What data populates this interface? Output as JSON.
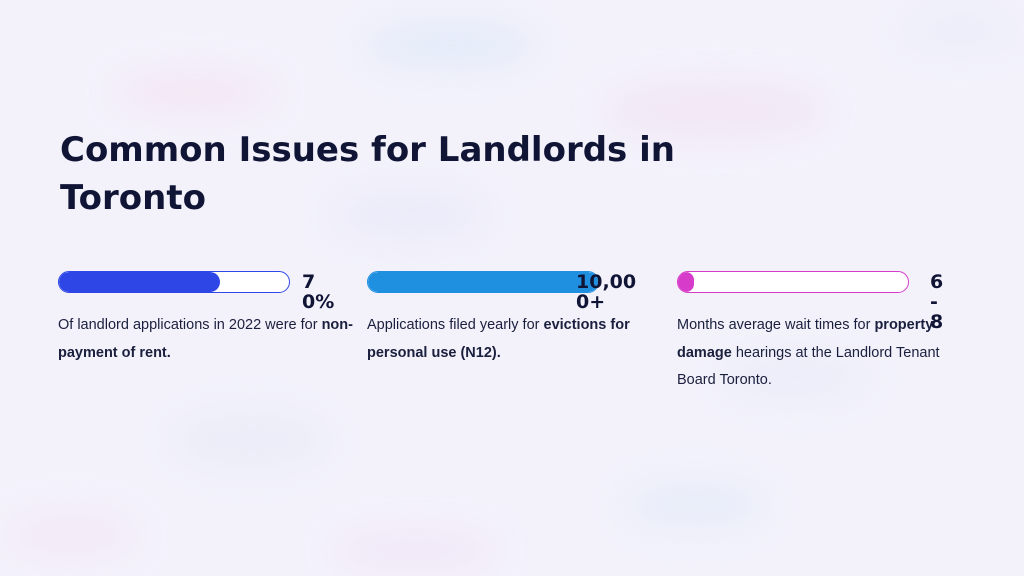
{
  "slide": {
    "title": "Common Issues for Landlords in Toronto"
  },
  "stats": [
    {
      "value": "70%",
      "fill_percent": 70,
      "bar_color": "#2e46e6",
      "border_color": "#2f48e8",
      "desc_pre": "Of landlord applications in 2022 were for ",
      "desc_bold": "non-payment of rent.",
      "desc_post": ""
    },
    {
      "value": "10,000+",
      "fill_percent": 100,
      "bar_color": "#1f8fe0",
      "border_color": "#1f8fe0",
      "desc_pre": "Applications filed yearly for ",
      "desc_bold": "evictions for personal use (N12).",
      "desc_post": ""
    },
    {
      "value": "6-8",
      "fill_percent": 6,
      "bar_color": "#d63bc9",
      "border_color": "#d63bc9",
      "desc_pre": "Months average wait times for ",
      "desc_bold": "property damage",
      "desc_post": " hearings at the Landlord Tenant Board Toronto."
    }
  ]
}
